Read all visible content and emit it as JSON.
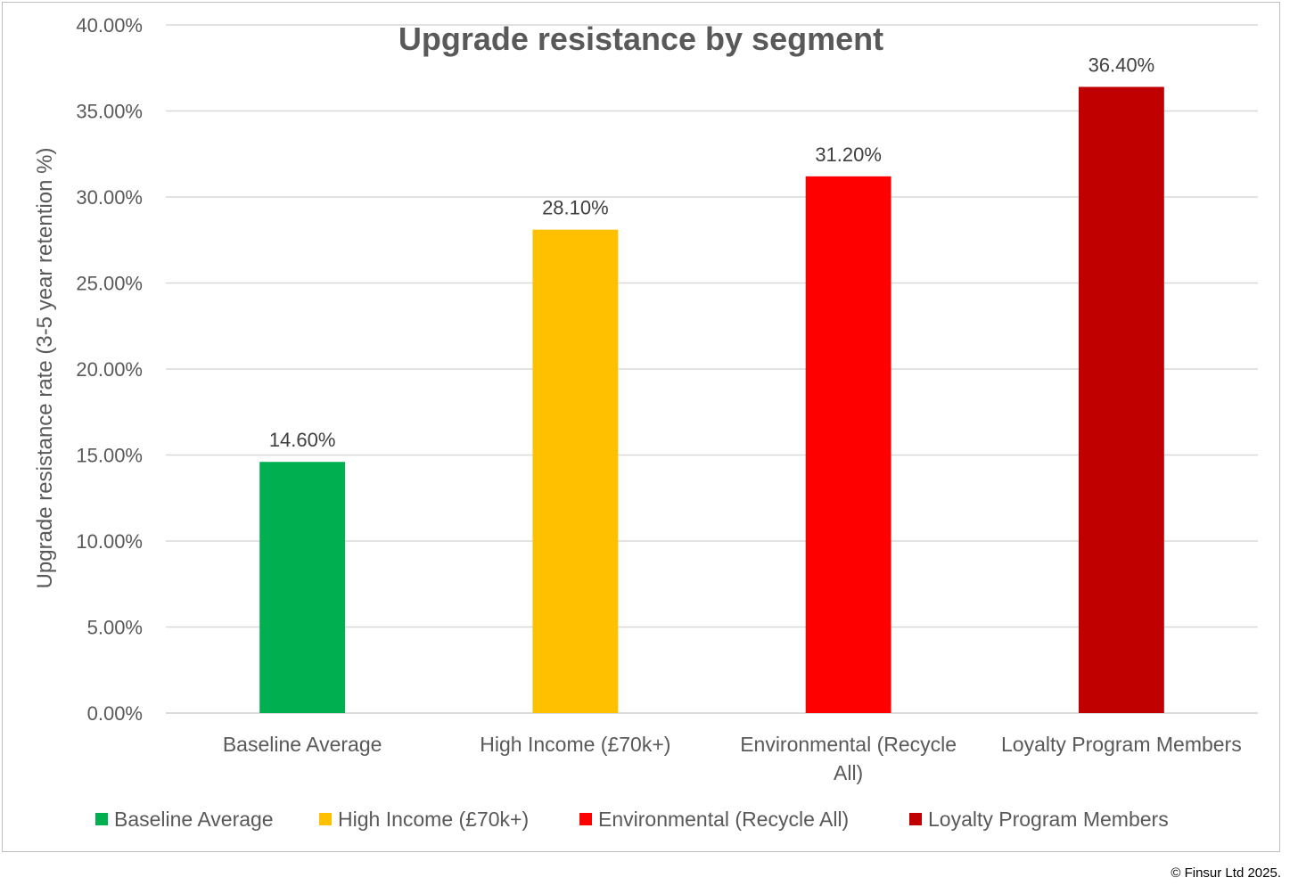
{
  "chart_data": {
    "type": "bar",
    "title": "Upgrade resistance by segment",
    "ylabel": "Upgrade resistance rate (3-5 year retention %)",
    "xlabel": "",
    "categories": [
      "Baseline Average",
      "High Income (£70k+)",
      "Environmental (Recycle All)",
      "Loyalty Program Members"
    ],
    "category_label_lines": [
      [
        "Baseline Average"
      ],
      [
        "High Income (£70k+)"
      ],
      [
        "Environmental (Recycle",
        "All)"
      ],
      [
        "Loyalty Program Members"
      ]
    ],
    "values": [
      14.6,
      28.1,
      31.2,
      36.4
    ],
    "data_labels": [
      "14.60%",
      "28.10%",
      "31.20%",
      "36.40%"
    ],
    "colors": [
      "#00b050",
      "#ffc000",
      "#ff0000",
      "#c00000"
    ],
    "ylim": [
      0,
      40
    ],
    "yticks": [
      0,
      5,
      10,
      15,
      20,
      25,
      30,
      35,
      40
    ],
    "ytick_labels": [
      "0.00%",
      "5.00%",
      "10.00%",
      "15.00%",
      "20.00%",
      "25.00%",
      "30.00%",
      "35.00%",
      "40.00%"
    ],
    "grid": true,
    "legend_position": "bottom",
    "legend": [
      {
        "label": "Baseline Average",
        "color": "#00b050"
      },
      {
        "label": "High Income (£70k+)",
        "color": "#ffc000"
      },
      {
        "label": "Environmental (Recycle All)",
        "color": "#ff0000"
      },
      {
        "label": "Loyalty Program Members",
        "color": "#c00000"
      }
    ]
  },
  "copyright": "© Finsur Ltd 2025."
}
